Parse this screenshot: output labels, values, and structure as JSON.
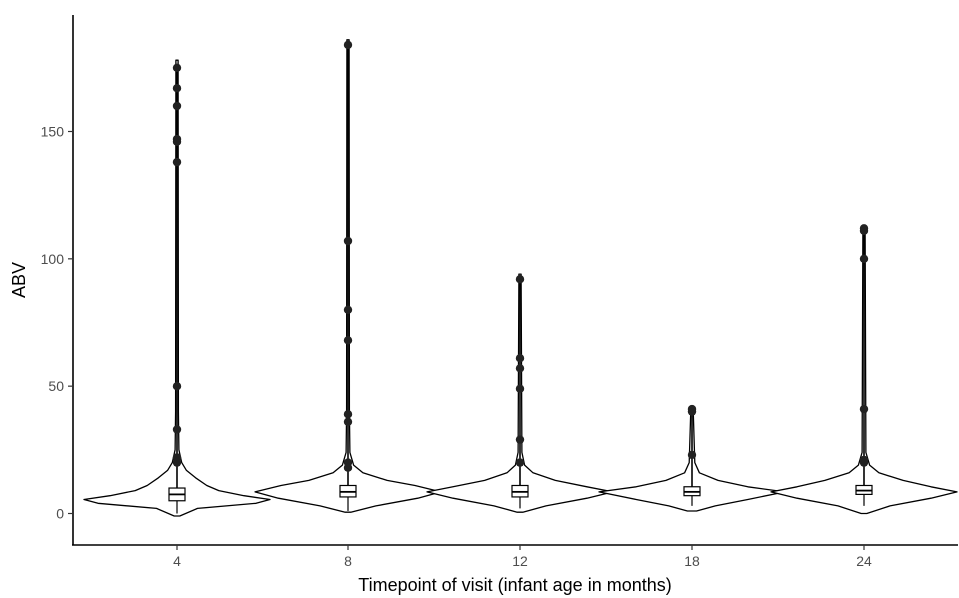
{
  "chart_data": {
    "type": "violin",
    "title": "",
    "xlabel": "Timepoint of visit (infant age in months)",
    "ylabel": "ABV",
    "categories": [
      "4",
      "8",
      "12",
      "18",
      "24"
    ],
    "ylim": [
      -12,
      195
    ],
    "yticks": [
      0,
      50,
      100,
      150
    ],
    "grid": false,
    "legend": "none",
    "groups": [
      {
        "label": "4",
        "box": {
          "q1": 5,
          "median": 7.5,
          "q3": 10,
          "whisker_low": 0,
          "whisker_high": 18
        },
        "outliers": [
          20,
          22,
          33,
          50,
          138,
          146,
          147,
          160,
          167,
          175
        ],
        "violin": {
          "min": -1,
          "max": 178,
          "density": [
            [
              -1,
              0.03
            ],
            [
              2,
              0.22
            ],
            [
              4,
              0.85
            ],
            [
              5.5,
              1.0
            ],
            [
              7,
              0.72
            ],
            [
              9,
              0.45
            ],
            [
              11,
              0.32
            ],
            [
              14,
              0.2
            ],
            [
              17,
              0.1
            ],
            [
              20,
              0.05
            ],
            [
              25,
              0.02
            ],
            [
              40,
              0.015
            ],
            [
              178,
              0.012
            ]
          ]
        }
      },
      {
        "label": "8",
        "box": {
          "q1": 6.5,
          "median": 8.5,
          "q3": 11,
          "whisker_low": 1,
          "whisker_high": 17
        },
        "outliers": [
          18,
          20,
          36,
          39,
          68,
          80,
          107,
          184
        ],
        "violin": {
          "min": 0.5,
          "max": 186,
          "density": [
            [
              0.5,
              0.03
            ],
            [
              3,
              0.3
            ],
            [
              6,
              0.75
            ],
            [
              8.5,
              1.0
            ],
            [
              11,
              0.72
            ],
            [
              13,
              0.42
            ],
            [
              16,
              0.16
            ],
            [
              19,
              0.06
            ],
            [
              24,
              0.02
            ],
            [
              40,
              0.015
            ],
            [
              186,
              0.012
            ]
          ]
        }
      },
      {
        "label": "12",
        "box": {
          "q1": 6.5,
          "median": 8.5,
          "q3": 11,
          "whisker_low": 2,
          "whisker_high": 15
        },
        "outliers": [
          20,
          29,
          49,
          57,
          61,
          92
        ],
        "violin": {
          "min": 0.5,
          "max": 94,
          "density": [
            [
              0.5,
              0.03
            ],
            [
              3,
              0.28
            ],
            [
              6,
              0.72
            ],
            [
              8.5,
              1.0
            ],
            [
              10.5,
              0.72
            ],
            [
              13,
              0.38
            ],
            [
              16,
              0.14
            ],
            [
              19,
              0.05
            ],
            [
              24,
              0.02
            ],
            [
              94,
              0.012
            ]
          ]
        }
      },
      {
        "label": "18",
        "box": {
          "q1": 7,
          "median": 8.5,
          "q3": 10.5,
          "whisker_low": 3,
          "whisker_high": 15
        },
        "outliers": [
          23,
          40,
          41
        ],
        "violin": {
          "min": 1,
          "max": 42,
          "density": [
            [
              1,
              0.05
            ],
            [
              3,
              0.25
            ],
            [
              5.5,
              0.6
            ],
            [
              8.5,
              1.0
            ],
            [
              10.5,
              0.6
            ],
            [
              13,
              0.28
            ],
            [
              16,
              0.08
            ],
            [
              20,
              0.03
            ],
            [
              42,
              0.012
            ]
          ]
        }
      },
      {
        "label": "24",
        "box": {
          "q1": 7.5,
          "median": 9,
          "q3": 11,
          "whisker_low": 3,
          "whisker_high": 16
        },
        "outliers": [
          20,
          21,
          41,
          100,
          111,
          112
        ],
        "violin": {
          "min": 0,
          "max": 113,
          "density": [
            [
              0,
              0.03
            ],
            [
              3,
              0.28
            ],
            [
              6,
              0.72
            ],
            [
              8.5,
              1.0
            ],
            [
              10.5,
              0.72
            ],
            [
              13,
              0.42
            ],
            [
              16,
              0.16
            ],
            [
              19,
              0.06
            ],
            [
              24,
              0.02
            ],
            [
              113,
              0.012
            ]
          ]
        }
      }
    ]
  }
}
